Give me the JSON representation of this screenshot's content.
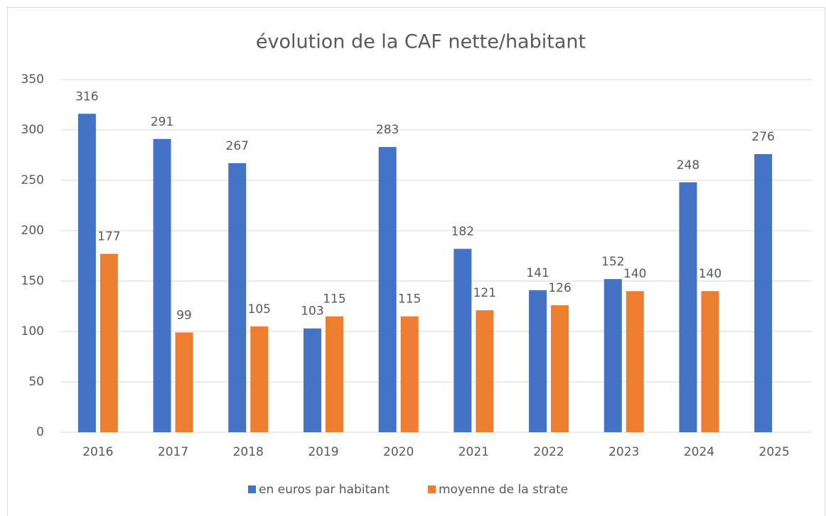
{
  "chart_data": {
    "type": "bar",
    "title": "évolution de la CAF nette/habitant",
    "categories": [
      "2016",
      "2017",
      "2018",
      "2019",
      "2020",
      "2021",
      "2022",
      "2023",
      "2024",
      "2025"
    ],
    "series": [
      {
        "name": "en euros par habitant",
        "color": "#4472c4",
        "values": [
          316,
          291,
          267,
          103,
          283,
          182,
          141,
          152,
          248,
          276
        ]
      },
      {
        "name": "moyenne de la strate",
        "color": "#ed7d31",
        "values": [
          177,
          99,
          105,
          115,
          115,
          121,
          126,
          140,
          140,
          null
        ]
      }
    ],
    "ylim": [
      0,
      350
    ],
    "yticks": [
      0,
      50,
      100,
      150,
      200,
      250,
      300,
      350
    ],
    "grid": true,
    "legend": "bottom"
  }
}
